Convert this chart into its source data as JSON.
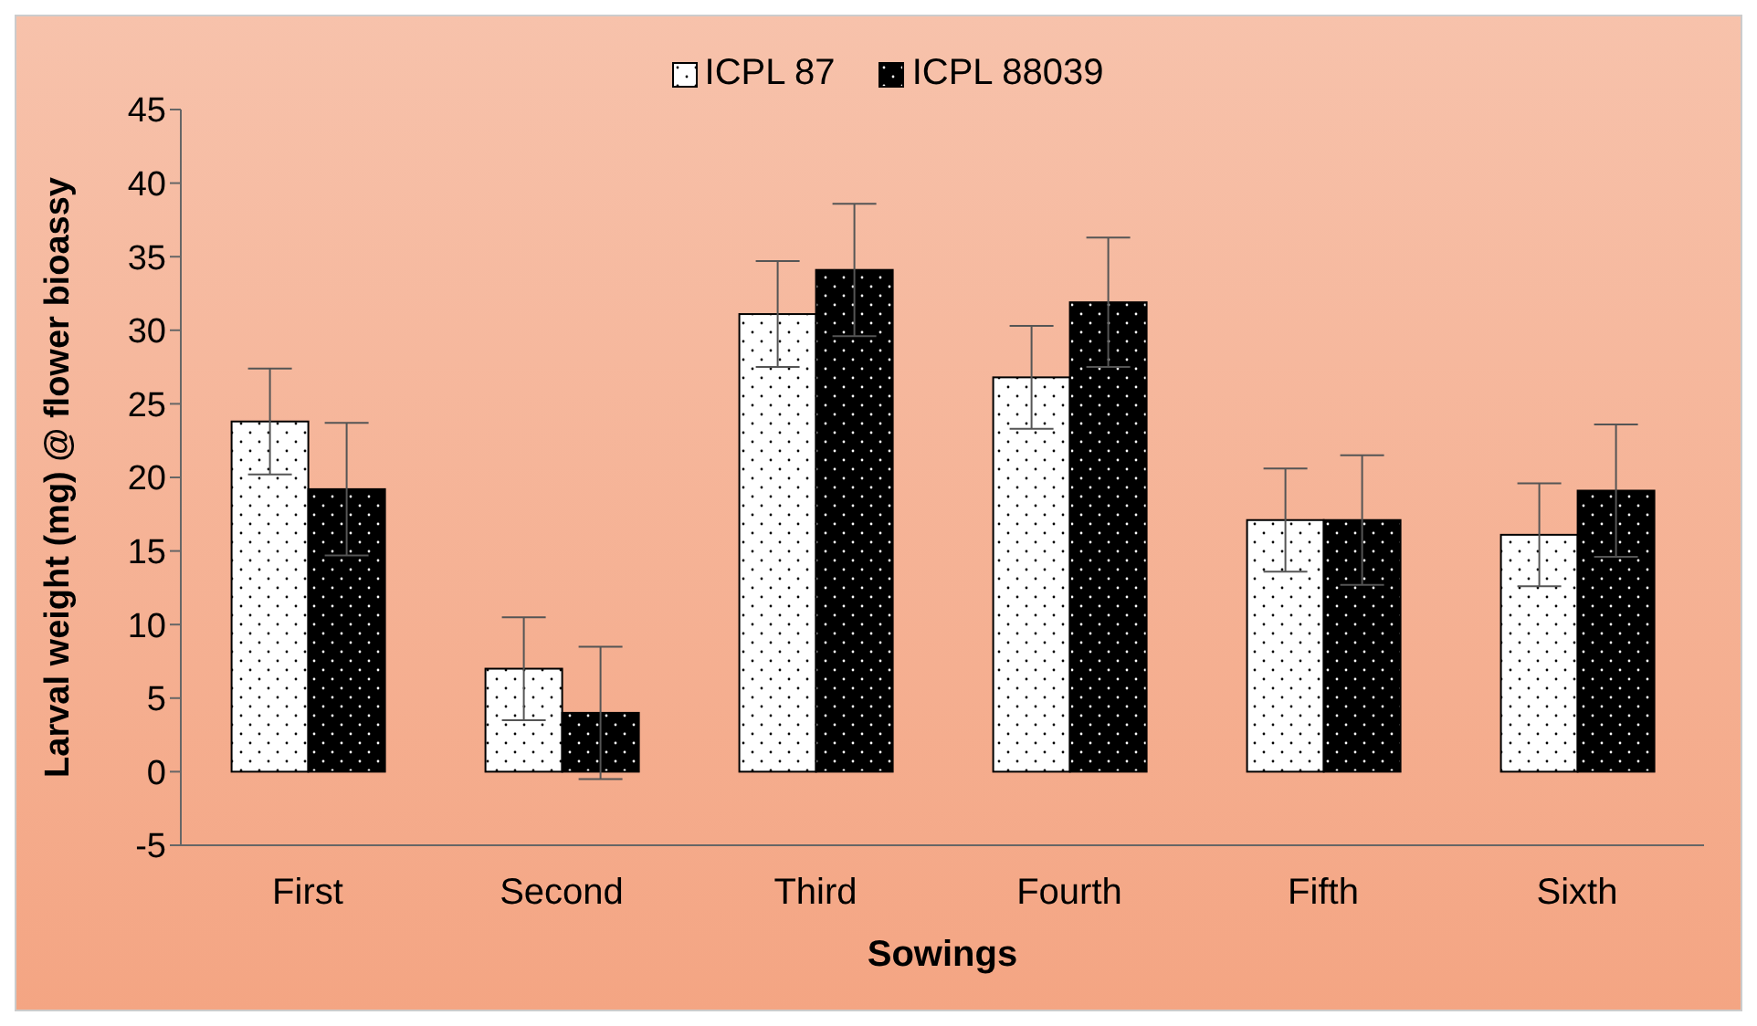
{
  "chart_data": {
    "type": "bar",
    "xlabel": "Sowings",
    "ylabel": "Larval weight (mg) @ flower bioassy",
    "categories": [
      "First",
      "Second",
      "Third",
      "Fourth",
      "Fifth",
      "Sixth"
    ],
    "series": [
      {
        "name": "ICPL 87",
        "color": "#ffffff",
        "values": [
          23.8,
          7.0,
          31.1,
          26.8,
          17.1,
          16.1
        ],
        "errors": [
          3.6,
          3.5,
          3.6,
          3.5,
          3.5,
          3.5
        ]
      },
      {
        "name": "ICPL 88039",
        "color": "#000000",
        "values": [
          19.2,
          4.0,
          34.1,
          31.9,
          17.1,
          19.1
        ],
        "errors": [
          4.5,
          4.5,
          4.5,
          4.4,
          4.4,
          4.5
        ]
      }
    ],
    "ylim": [
      -5,
      45
    ],
    "yticks": [
      -5,
      0,
      5,
      10,
      15,
      20,
      25,
      30,
      35,
      40,
      45
    ],
    "grid": false,
    "legend": "top"
  }
}
